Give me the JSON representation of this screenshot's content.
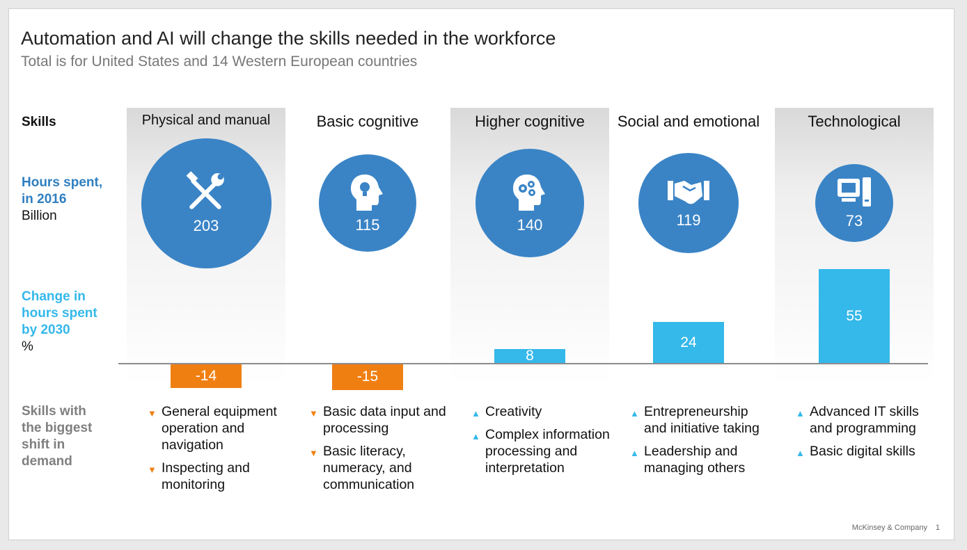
{
  "title": "Automation and AI will change the skills needed in the workforce",
  "subtitle": "Total is for United States and 14 Western European countries",
  "row_labels": {
    "skills": "Skills",
    "hours_line1": "Hours spent,",
    "hours_line2": "in 2016",
    "hours_unit": "Billion",
    "change_line1": "Change in",
    "change_line2": "hours spent",
    "change_line3": "by 2030",
    "change_unit": "%",
    "shift_line1": "Skills with",
    "shift_line2": "the biggest",
    "shift_line3": "shift in",
    "shift_line4": "demand"
  },
  "colors": {
    "bubble": "#3a84c6",
    "increase": "#35b8ea",
    "decrease": "#f07f12",
    "hours_label": "#2f7fc1",
    "change_label": "#35b8ea",
    "shift_label": "#7f7f7f"
  },
  "chart_data": {
    "type": "bar",
    "categories": [
      "Physical and manual",
      "Basic cognitive",
      "Higher cognitive",
      "Social and emotional",
      "Technological"
    ],
    "hours_2016_billion": [
      203,
      115,
      140,
      119,
      73
    ],
    "change_by_2030_pct": [
      -14,
      -15,
      8,
      24,
      55
    ],
    "icons": [
      "tools-icon",
      "head-lightbulb-icon",
      "head-gears-icon",
      "handshake-icon",
      "computer-icon"
    ],
    "skills_shift": [
      [
        {
          "text": "General equipment operation and navigation",
          "dir": "down"
        },
        {
          "text": "Inspecting and monitoring",
          "dir": "down"
        }
      ],
      [
        {
          "text": "Basic data input and processing",
          "dir": "down"
        },
        {
          "text": "Basic literacy, numeracy, and communication",
          "dir": "down"
        }
      ],
      [
        {
          "text": "Creativity",
          "dir": "up"
        },
        {
          "text": "Complex information processing and interpretation",
          "dir": "up"
        }
      ],
      [
        {
          "text": "Entrepreneurship and initiative taking",
          "dir": "up"
        },
        {
          "text": "Leadership and managing others",
          "dir": "up"
        }
      ],
      [
        {
          "text": "Advanced IT skills and programming",
          "dir": "up"
        },
        {
          "text": "Basic digital skills",
          "dir": "up"
        }
      ]
    ]
  },
  "footer": {
    "source": "McKinsey & Company",
    "page": "1"
  }
}
